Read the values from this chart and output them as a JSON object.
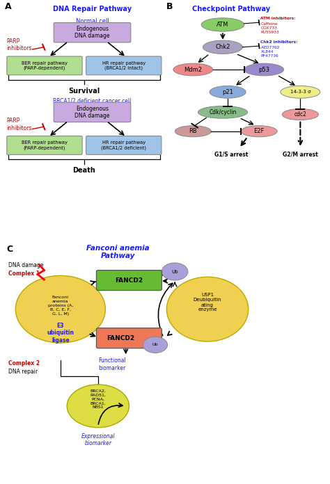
{
  "fig_width": 4.74,
  "fig_height": 6.96,
  "dpi": 100,
  "bg_color": "#ffffff",
  "panel_A": {
    "title": "DNA Repair Pathway",
    "title_color": "#1a1aff",
    "normal_cell_label": "Normal cell",
    "cancer_cell_label": "BRCA1/2 deficient cancer cell",
    "cell_label_color": "#1a1aff",
    "endo_box_color": "#c8aae0",
    "ber_box_color": "#b0dd90",
    "hr_box_color": "#a0c4e8",
    "parp_text": "PARP\ninhibitors",
    "parp_color": "#cc0000",
    "survival_text": "Survival",
    "death_text": "Death"
  },
  "panel_B": {
    "title": "Checkpoint Pathway",
    "title_color": "#1a1aff",
    "atm_color": "#88cc66",
    "chk2_color": "#aaa0c0",
    "mdm2_color": "#ee8888",
    "p53_color": "#9988cc",
    "p21_color": "#88aadd",
    "sigma_color": "#eeee88",
    "cdk_color": "#88bb88",
    "rb_color": "#cc9999",
    "e2f_color": "#ee9999",
    "cdc2_color": "#ee9999",
    "atm_inh_label": "ATM inhibitors:",
    "atm_inh_drugs": "Caffeine\nCGK733\nKU55933",
    "atm_inh_color": "#cc0000",
    "chk2_inh_label": "Chk2 inhibitors:",
    "chk2_inh_drugs": "AZD7762\nXL844\nPF47736",
    "chk2_inh_color": "#1a1aff"
  },
  "panel_C": {
    "title": "Fanconi anemia\nPathway",
    "title_color": "#1a1aff",
    "fancd2_green_color": "#66bb33",
    "fancd2_red_color": "#ee7755",
    "fanconi_ellipse_color": "#f0d050",
    "usp1_ellipse_color": "#f0d050",
    "brca_ellipse_color": "#dddd44",
    "ub_color": "#a8a0d8",
    "complex1_color": "#cc0000",
    "complex2_color": "#cc0000",
    "functional_color": "#1a1aff",
    "expressional_color": "#1a1aff"
  }
}
